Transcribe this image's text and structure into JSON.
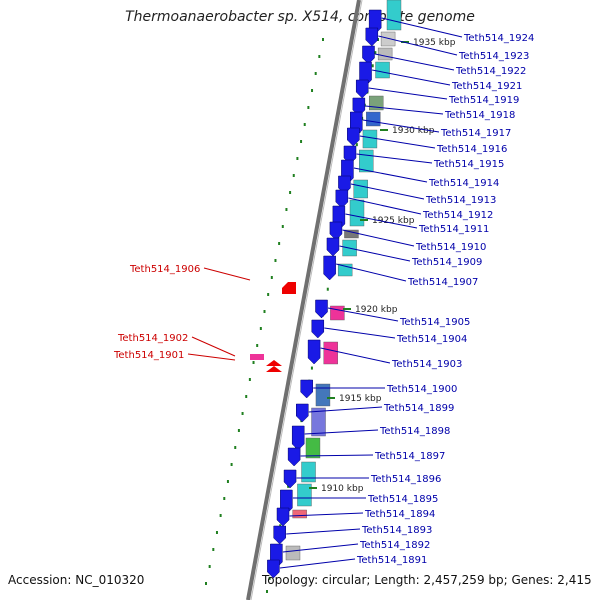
{
  "title": "Thermoanaerobacter sp. X514, complete genome",
  "accession": "Accession: NC_010320",
  "summary": "Topology: circular; Length: 2,457,259 bp; Genes: 2,415",
  "colors": {
    "backbone": "#707070",
    "forward_label": "#0000aa",
    "reverse_label": "#cc0000",
    "gene_blue": "#1a1ae6",
    "gene_red": "#ee0000",
    "tick": "#208020",
    "cyan": "#33cccc",
    "pink": "#ee3399"
  },
  "kbp_ticks": [
    "1935 kbp",
    "1930 kbp",
    "1925 kbp",
    "1920 kbp",
    "1915 kbp",
    "1910 kbp"
  ],
  "forward_genes": [
    "Teth514_1924",
    "Teth514_1923",
    "Teth514_1922",
    "Teth514_1921",
    "Teth514_1919",
    "Teth514_1918",
    "Teth514_1917",
    "Teth514_1916",
    "Teth514_1915",
    "Teth514_1914",
    "Teth514_1913",
    "Teth514_1912",
    "Teth514_1911",
    "Teth514_1910",
    "Teth514_1909",
    "Teth514_1907",
    "Teth514_1905",
    "Teth514_1904",
    "Teth514_1903",
    "Teth514_1900",
    "Teth514_1899",
    "Teth514_1898",
    "Teth514_1897",
    "Teth514_1896",
    "Teth514_1895",
    "Teth514_1894",
    "Teth514_1893",
    "Teth514_1892",
    "Teth514_1891"
  ],
  "reverse_genes": [
    "Teth514_1906",
    "Teth514_1902",
    "Teth514_1901"
  ]
}
